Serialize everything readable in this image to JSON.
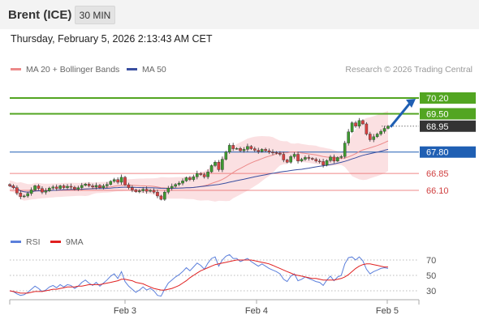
{
  "header": {
    "title": "Brent (ICE)",
    "timeframe": "30 MIN"
  },
  "datetime": "Thursday, February 5, 2026 2:13:43 AM CET",
  "legend": {
    "ma20_label": "MA 20 + Bollinger Bands",
    "ma50_label": "MA 50",
    "rsi_label": "RSI",
    "ma9_label": "9MA"
  },
  "copyright": "Research © 2026 Trading Central",
  "colors": {
    "resistance": "#52a521",
    "current": "#333333",
    "pivot": "#1f5fb3",
    "support": "#ec6b6b",
    "candle_up": "#3d9a30",
    "candle_down": "#d84040",
    "ma20": "#ec8a8a",
    "ma50": "#3a4fa0",
    "bollinger": "#fadadd",
    "rsi": "#5b7fdb",
    "rsi_ma": "#e02020",
    "arrow": "#1f5fb3"
  },
  "chart_data": [
    {
      "type": "candlestick",
      "x_labels": [
        "Feb 3",
        "Feb 4",
        "Feb 5"
      ],
      "ylim": [
        64.9,
        71.3
      ],
      "levels": [
        {
          "role": "resistance",
          "value": 70.2,
          "label": "70.20"
        },
        {
          "role": "resistance",
          "value": 69.5,
          "label": "69.50"
        },
        {
          "role": "current",
          "value": 68.95,
          "label": "68.95"
        },
        {
          "role": "pivot",
          "value": 67.8,
          "label": "67.80"
        },
        {
          "role": "support",
          "value": 66.85,
          "label": "66.85"
        },
        {
          "role": "support",
          "value": 66.1,
          "label": "66.10"
        }
      ],
      "series": [
        {
          "name": "MA 20 + Bollinger Bands"
        },
        {
          "name": "MA 50"
        }
      ],
      "close": [
        66.3,
        66.22,
        65.98,
        65.82,
        65.85,
        65.96,
        66.12,
        66.3,
        66.18,
        66.02,
        66.08,
        66.2,
        66.25,
        66.18,
        66.3,
        66.22,
        66.28,
        66.24,
        66.15,
        66.22,
        66.32,
        66.38,
        66.3,
        66.25,
        66.32,
        66.22,
        66.3,
        66.36,
        66.5,
        66.58,
        66.46,
        66.68,
        66.35,
        66.22,
        66.12,
        66.04,
        66.08,
        66.15,
        66.06,
        66.1,
        66.02,
        65.85,
        65.7,
        66.02,
        66.2,
        66.28,
        66.36,
        66.42,
        66.52,
        66.66,
        66.58,
        66.7,
        66.85,
        66.8,
        66.7,
        66.92,
        67.2,
        67.35,
        67.02,
        67.48,
        67.8,
        68.1,
        67.95,
        67.96,
        67.86,
        67.92,
        68.05,
        67.95,
        67.88,
        67.82,
        67.92,
        67.86,
        67.8,
        67.78,
        67.75,
        67.7,
        67.45,
        67.35,
        67.6,
        67.7,
        67.4,
        67.48,
        67.56,
        67.52,
        67.48,
        67.4,
        67.38,
        67.22,
        67.42,
        67.58,
        67.4,
        67.56,
        67.6,
        68.2,
        68.7,
        69.1,
        68.95,
        69.2,
        69.05,
        68.6,
        68.35,
        68.48,
        68.6,
        68.72,
        68.85,
        68.95
      ]
    },
    {
      "type": "line",
      "title": "RSI",
      "yticks": [
        30,
        50,
        70
      ],
      "ylim": [
        20,
        80
      ],
      "series": [
        {
          "name": "RSI",
          "values": [
            30,
            29,
            26,
            24,
            25,
            28,
            32,
            36,
            33,
            29,
            31,
            35,
            37,
            34,
            38,
            35,
            38,
            37,
            33,
            36,
            41,
            44,
            40,
            37,
            41,
            36,
            40,
            44,
            49,
            52,
            46,
            55,
            42,
            36,
            32,
            28,
            31,
            35,
            31,
            33,
            30,
            24,
            23,
            32,
            40,
            44,
            48,
            51,
            55,
            60,
            56,
            61,
            66,
            63,
            58,
            66,
            72,
            74,
            62,
            70,
            75,
            77,
            72,
            72,
            68,
            70,
            72,
            68,
            65,
            62,
            65,
            62,
            59,
            57,
            55,
            52,
            45,
            42,
            49,
            52,
            43,
            45,
            48,
            46,
            44,
            42,
            41,
            37,
            44,
            49,
            43,
            48,
            50,
            65,
            73,
            74,
            70,
            74,
            69,
            58,
            52,
            55,
            57,
            59,
            60,
            59
          ]
        },
        {
          "name": "9MA",
          "values": [
            30,
            29,
            28,
            27,
            27,
            27,
            28,
            29,
            29,
            29,
            30,
            31,
            32,
            32,
            33,
            34,
            35,
            35,
            35,
            36,
            36,
            37,
            38,
            38,
            38,
            38,
            39,
            40,
            41,
            42,
            43,
            45,
            45,
            44,
            43,
            41,
            40,
            39,
            37,
            35,
            33,
            32,
            31,
            31,
            32,
            33,
            35,
            37,
            40,
            43,
            47,
            50,
            53,
            56,
            58,
            60,
            62,
            64,
            65,
            66,
            67,
            68,
            69,
            70,
            70,
            70,
            70,
            70,
            69,
            68,
            67,
            66,
            65,
            63,
            61,
            59,
            57,
            55,
            53,
            51,
            50,
            49,
            48,
            47,
            46,
            46,
            45,
            44,
            44,
            44,
            44,
            45,
            46,
            48,
            51,
            55,
            59,
            62,
            64,
            65,
            65,
            64,
            63,
            62,
            61,
            61
          ]
        }
      ]
    }
  ]
}
